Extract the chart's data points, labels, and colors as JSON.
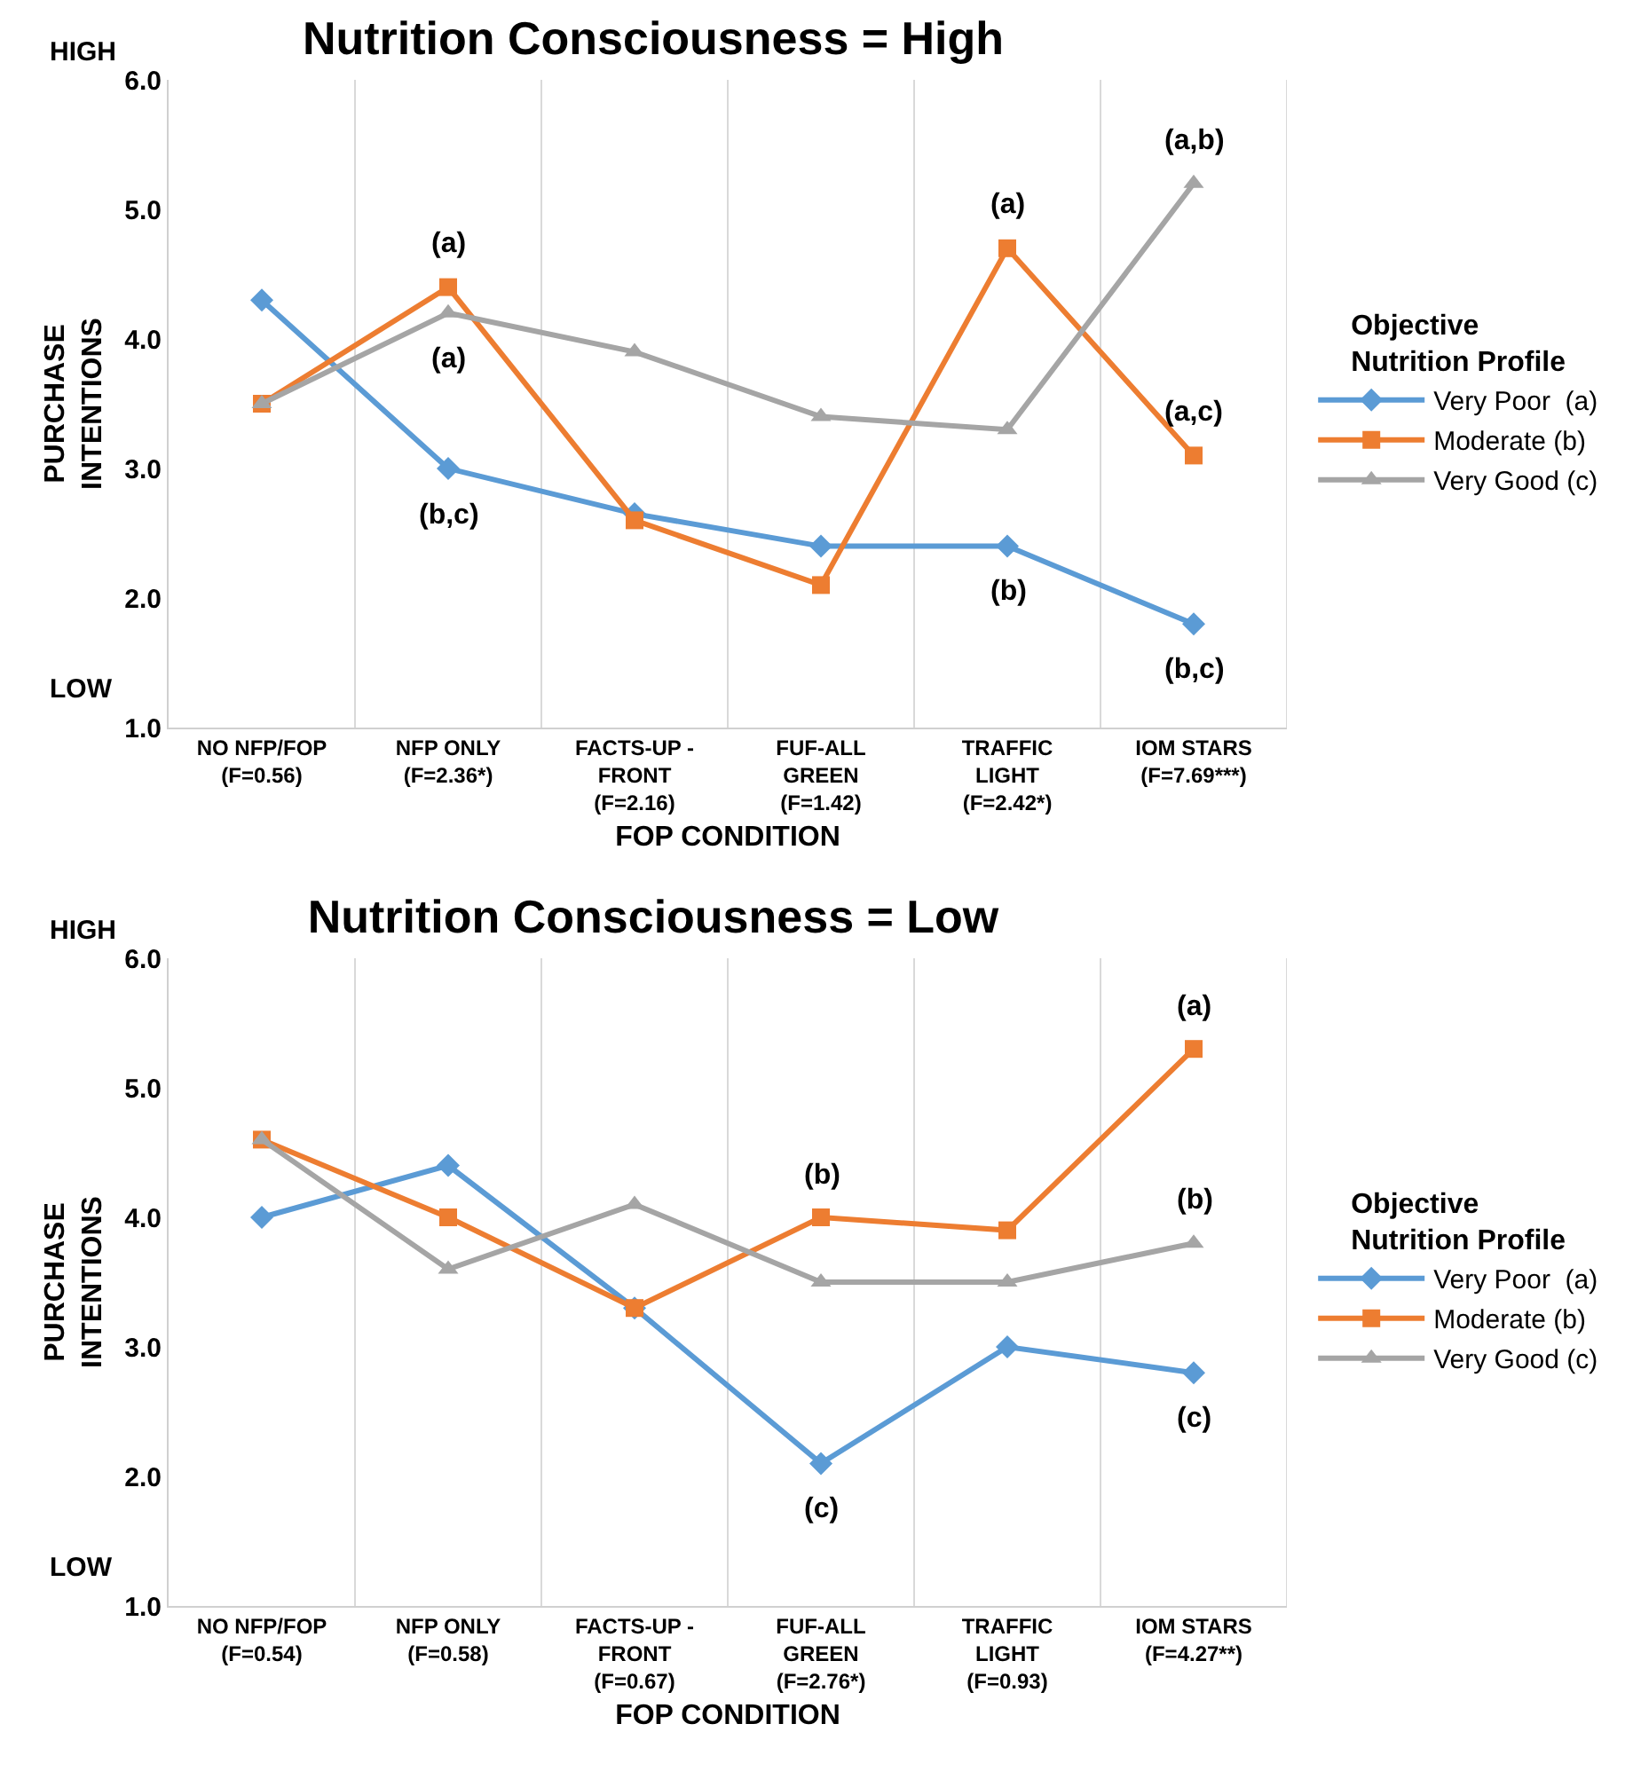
{
  "chart_data": [
    {
      "type": "line",
      "title": "Nutrition Consciousness = High",
      "xlabel": "FOP CONDITION",
      "ylabel": "PURCHASE\nINTENTIONS",
      "legend_title": "Objective\nNutrition Profile",
      "legend": "right",
      "grid": "x",
      "ylim": [
        1,
        6
      ],
      "yticks": [
        {
          "value": 1,
          "label": "1.0"
        },
        {
          "value": 2,
          "label": "2.0"
        },
        {
          "value": 3,
          "label": "3.0"
        },
        {
          "value": 4,
          "label": "4.0"
        },
        {
          "value": 5,
          "label": "5.0"
        },
        {
          "value": 6,
          "label": "6.0"
        }
      ],
      "categories": [
        "NO NFP/FOP\n(F=0.56)",
        "NFP ONLY\n(F=2.36*)",
        "FACTS-UP -\nFRONT\n(F=2.16)",
        "FUF-ALL\nGREEN\n(F=1.42)",
        "TRAFFIC\nLIGHT\n(F=2.42*)",
        "IOM STARS\n(F=7.69***)"
      ],
      "series": [
        {
          "name": "Very Poor  (a)",
          "color": "#5b9bd5",
          "marker": "diamond",
          "values": [
            4.3,
            3.0,
            2.65,
            2.4,
            2.4,
            1.8
          ]
        },
        {
          "name": "Moderate (b)",
          "color": "#ed7d31",
          "marker": "square",
          "values": [
            3.5,
            4.4,
            2.6,
            2.1,
            4.7,
            3.1
          ]
        },
        {
          "name": "Very Good (c)",
          "color": "#a5a5a5",
          "marker": "triangle",
          "values": [
            3.5,
            4.2,
            3.9,
            3.4,
            3.3,
            5.2
          ]
        }
      ],
      "annotations": [
        "HIGH",
        "LOW",
        {
          "text": "(a)",
          "x": "NFP ONLY\n(F=2.36*)",
          "y": 4.4
        },
        {
          "text": "(a)",
          "x": "NFP ONLY\n(F=2.36*)",
          "y": 4.2
        },
        {
          "text": "(b,c)",
          "x": "NFP ONLY\n(F=2.36*)",
          "y": 3.0
        },
        {
          "text": "(a)",
          "x": "TRAFFIC\nLIGHT\n(F=2.42*)",
          "y": 4.7
        },
        {
          "text": "(b)",
          "x": "TRAFFIC\nLIGHT\n(F=2.42*)",
          "y": 2.4
        },
        {
          "text": "(a,b)",
          "x": "IOM STARS\n(F=7.69***)",
          "y": 5.2
        },
        {
          "text": "(a,c)",
          "x": "IOM STARS\n(F=7.69***)",
          "y": 3.1
        },
        {
          "text": "(b,c)",
          "x": "IOM STARS\n(F=7.69***)",
          "y": 1.8
        }
      ]
    },
    {
      "type": "line",
      "title": "Nutrition Consciousness = Low",
      "xlabel": "FOP CONDITION",
      "ylabel": "PURCHASE\nINTENTIONS",
      "legend_title": "Objective\nNutrition Profile",
      "legend": "right",
      "grid": "x",
      "ylim": [
        1,
        6
      ],
      "yticks": [
        {
          "value": 1,
          "label": "1.0"
        },
        {
          "value": 2,
          "label": "2.0"
        },
        {
          "value": 3,
          "label": "3.0"
        },
        {
          "value": 4,
          "label": "4.0"
        },
        {
          "value": 5,
          "label": "5.0"
        },
        {
          "value": 6,
          "label": "6.0"
        }
      ],
      "categories": [
        "NO NFP/FOP\n(F=0.54)",
        "NFP ONLY\n(F=0.58)",
        "FACTS-UP -\nFRONT\n(F=0.67)",
        "FUF-ALL\nGREEN\n(F=2.76*)",
        "TRAFFIC\nLIGHT\n(F=0.93)",
        "IOM STARS\n(F=4.27**)"
      ],
      "series": [
        {
          "name": "Very Poor  (a)",
          "color": "#5b9bd5",
          "marker": "diamond",
          "values": [
            4.0,
            4.4,
            3.3,
            2.1,
            3.0,
            2.8
          ]
        },
        {
          "name": "Moderate (b)",
          "color": "#ed7d31",
          "marker": "square",
          "values": [
            4.6,
            4.0,
            3.3,
            4.0,
            3.9,
            5.3
          ]
        },
        {
          "name": "Very Good (c)",
          "color": "#a5a5a5",
          "marker": "triangle",
          "values": [
            4.6,
            3.6,
            4.1,
            3.5,
            3.5,
            3.8
          ]
        }
      ],
      "annotations": [
        "HIGH",
        "LOW",
        {
          "text": "(b)",
          "x": "FUF-ALL\nGREEN\n(F=2.76*)",
          "y": 4.0
        },
        {
          "text": "(c)",
          "x": "FUF-ALL\nGREEN\n(F=2.76*)",
          "y": 2.1
        },
        {
          "text": "(a)",
          "x": "IOM STARS\n(F=4.27**)",
          "y": 5.3
        },
        {
          "text": "(b)",
          "x": "IOM STARS\n(F=4.27**)",
          "y": 3.8
        },
        {
          "text": "(c)",
          "x": "IOM STARS\n(F=4.27**)",
          "y": 2.8
        }
      ]
    }
  ]
}
